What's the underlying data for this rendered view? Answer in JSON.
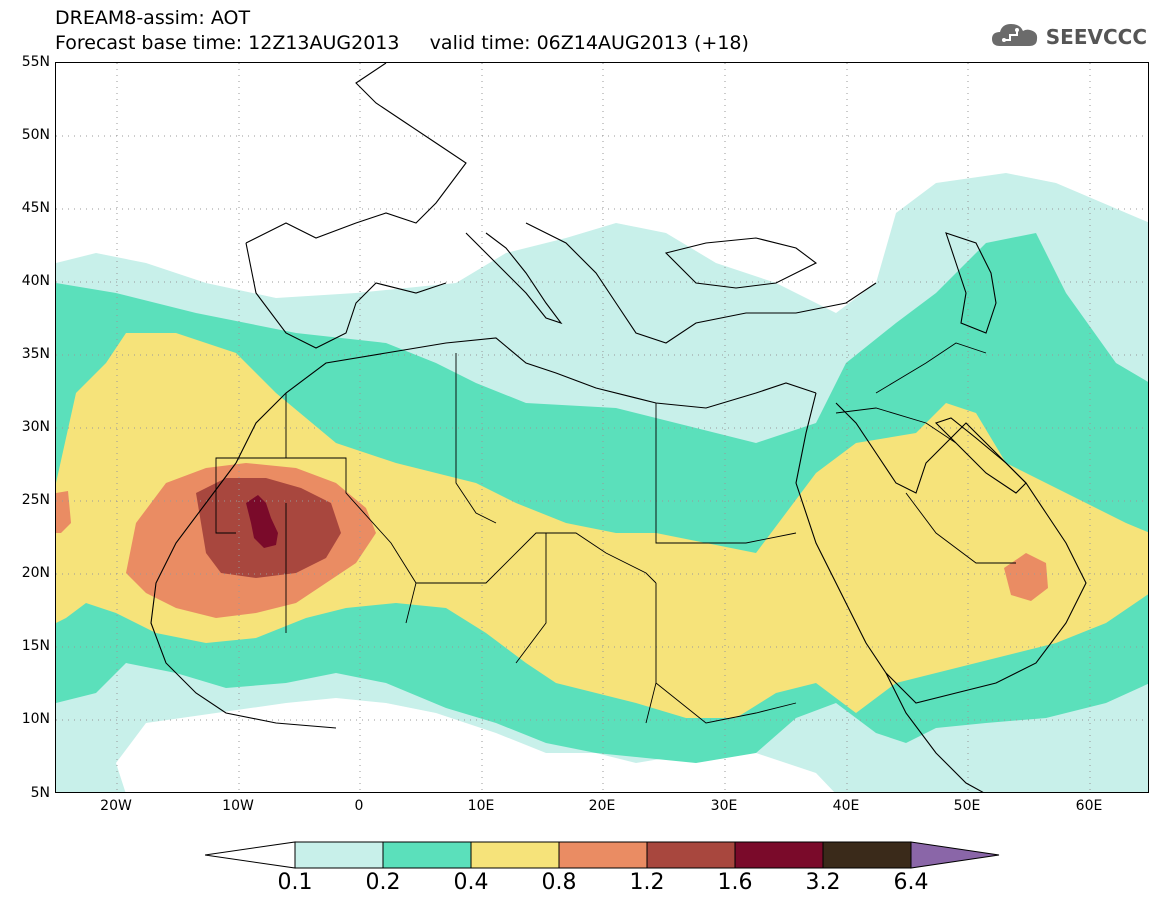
{
  "header": {
    "line1": "DREAM8-assim: AOT",
    "line2": "Forecast base time: 12Z13AUG2013     valid time: 06Z14AUG2013 (+18)"
  },
  "logo": {
    "text": "SEEVCCC",
    "icon": "cloud-icon"
  },
  "axes": {
    "lat_labels": [
      "55N",
      "50N",
      "45N",
      "40N",
      "35N",
      "30N",
      "25N",
      "20N",
      "15N",
      "10N",
      "5N"
    ],
    "lon_labels": [
      "20W",
      "10W",
      "0",
      "10E",
      "20E",
      "30E",
      "40E",
      "50E",
      "60E"
    ],
    "lat_range": [
      5,
      55
    ],
    "lon_range": [
      -25,
      65
    ]
  },
  "colorbar": {
    "labels": [
      "0.1",
      "0.2",
      "0.4",
      "0.8",
      "1.2",
      "1.6",
      "3.2",
      "6.4"
    ],
    "colors": [
      "#ffffff",
      "#c8f0ea",
      "#5be0bb",
      "#f6e37a",
      "#ea8c63",
      "#a8473e",
      "#7a0a2a",
      "#3a2a1a",
      "#8a66a8"
    ]
  },
  "colors": {
    "aot_0_1": "#c8f0ea",
    "aot_0_2": "#5be0bb",
    "aot_0_4": "#f6e37a",
    "aot_0_8": "#ea8c63",
    "aot_1_2": "#a8473e",
    "aot_1_6": "#7a0a2a"
  }
}
